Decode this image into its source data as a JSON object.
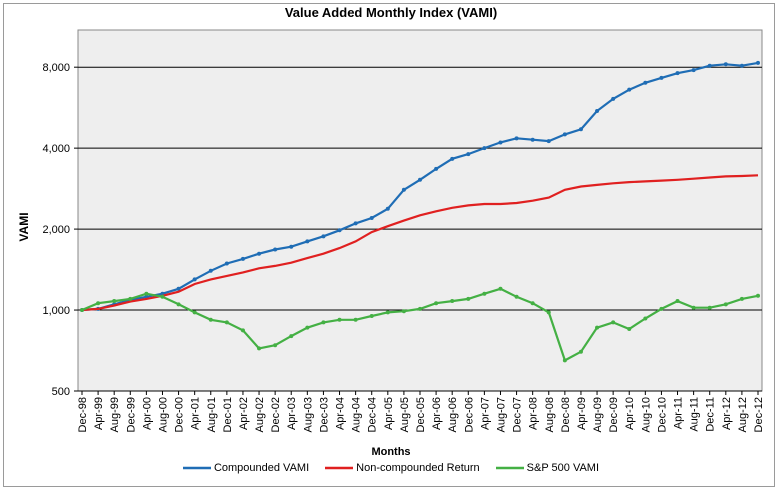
{
  "chart_data": {
    "type": "line",
    "title": "Value Added Monthly Index (VAMI)",
    "xlabel": "Months",
    "ylabel": "VAMI",
    "y_scale": "log",
    "ylim": [
      500,
      11000
    ],
    "y_ticks": [
      500,
      1000,
      2000,
      4000,
      8000
    ],
    "y_tick_labels": [
      "500",
      "1,000",
      "2,000",
      "4,000",
      "8,000"
    ],
    "x_tick_labels": [
      "Dec-98",
      "Apr-99",
      "Aug-99",
      "Dec-99",
      "Apr-00",
      "Aug-00",
      "Dec-00",
      "Apr-01",
      "Aug-01",
      "Dec-01",
      "Apr-02",
      "Aug-02",
      "Dec-02",
      "Apr-03",
      "Aug-03",
      "Dec-03",
      "Apr-04",
      "Aug-04",
      "Dec-04",
      "Apr-05",
      "Aug-05",
      "Dec-05",
      "Apr-06",
      "Aug-06",
      "Dec-06",
      "Apr-07",
      "Aug-07",
      "Dec-07",
      "Apr-08",
      "Aug-08",
      "Dec-08",
      "Apr-09",
      "Aug-09",
      "Dec-09",
      "Apr-10",
      "Aug-10",
      "Dec-10",
      "Apr-11",
      "Aug-11",
      "Dec-11",
      "Apr-12",
      "Aug-12",
      "Dec-12"
    ],
    "grid": true,
    "legend_position": "bottom",
    "series": [
      {
        "name": "Compounded VAMI",
        "color": "#1f6db5",
        "values": [
          1000,
          1010,
          1050,
          1090,
          1120,
          1150,
          1200,
          1300,
          1400,
          1490,
          1550,
          1620,
          1680,
          1720,
          1800,
          1880,
          1980,
          2100,
          2200,
          2380,
          2800,
          3050,
          3350,
          3650,
          3800,
          4000,
          4200,
          4350,
          4300,
          4250,
          4500,
          4700,
          5500,
          6100,
          6600,
          7000,
          7300,
          7600,
          7800,
          8100,
          8200,
          8100,
          8300
        ]
      },
      {
        "name": "Non-compounded Return",
        "color": "#e02020",
        "values": [
          1000,
          1010,
          1040,
          1075,
          1100,
          1130,
          1170,
          1250,
          1300,
          1340,
          1380,
          1430,
          1460,
          1500,
          1560,
          1620,
          1700,
          1800,
          1950,
          2050,
          2150,
          2250,
          2330,
          2400,
          2450,
          2480,
          2480,
          2500,
          2550,
          2620,
          2800,
          2880,
          2920,
          2960,
          2990,
          3010,
          3030,
          3050,
          3080,
          3110,
          3140,
          3150,
          3170
        ]
      },
      {
        "name": "S&P 500 VAMI",
        "color": "#44b044",
        "values": [
          1000,
          1060,
          1080,
          1100,
          1150,
          1120,
          1050,
          980,
          920,
          900,
          840,
          720,
          740,
          800,
          860,
          900,
          920,
          920,
          950,
          980,
          990,
          1010,
          1060,
          1080,
          1100,
          1150,
          1200,
          1120,
          1060,
          980,
          650,
          700,
          860,
          900,
          850,
          930,
          1010,
          1080,
          1020,
          1020,
          1050,
          1100,
          1130
        ]
      }
    ]
  }
}
